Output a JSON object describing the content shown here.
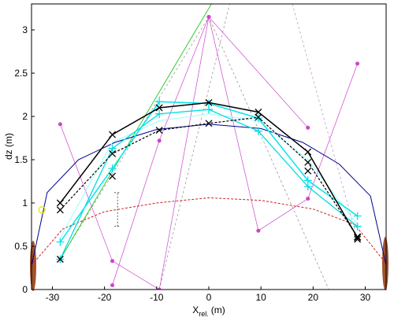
{
  "chart_data": {
    "type": "line",
    "xlabel": {
      "main": "X",
      "sub": "rel.",
      "unit": "(m)"
    },
    "ylabel": "dz (m)",
    "xlim": [
      -34,
      34
    ],
    "ylim": [
      0,
      3.3
    ],
    "xticks": [
      -30,
      -20,
      -10,
      0,
      10,
      20,
      30
    ],
    "yticks": [
      0,
      0.5,
      1,
      1.5,
      2,
      2.5,
      3
    ],
    "series": [
      {
        "color": "#999999",
        "dash": "3,3",
        "width": 0.8,
        "marker": "none",
        "x": [
          -28.5,
          0,
          23
        ],
        "values": [
          0.35,
          3.15,
          0
        ]
      },
      {
        "color": "#999999",
        "dash": "3,3",
        "width": 0.8,
        "marker": "none",
        "x": [
          -9.5,
          4
        ],
        "values": [
          0,
          3.3
        ]
      },
      {
        "color": "#cc99cc",
        "dash": "3,3",
        "width": 0.8,
        "marker": "none",
        "x": [
          16,
          28.5
        ],
        "values": [
          3.3,
          0.58
        ]
      },
      {
        "color": "#33cc33",
        "dash": "",
        "width": 1,
        "marker": "none",
        "x": [
          -28.5,
          0.5
        ],
        "values": [
          0.35,
          3.3
        ]
      },
      {
        "color": "#cc44cc",
        "dash": "",
        "width": 0.7,
        "marker": "dot",
        "x": [
          -28.5,
          -18.5,
          -9.5,
          0,
          9.5,
          19,
          28.5
        ],
        "values": [
          1.91,
          0.33,
          0.0,
          3.15,
          0.68,
          1.05,
          2.61
        ]
      },
      {
        "color": "#cc44cc",
        "dash": "",
        "width": 0.7,
        "marker": "dot",
        "x": [
          -18.5,
          -9.5,
          0,
          19
        ],
        "values": [
          0.05,
          1.72,
          3.15,
          1.87
        ]
      },
      {
        "color": "#00008b",
        "dash": "",
        "width": 1,
        "marker": "none",
        "x": [
          -34,
          -31,
          -25,
          -18,
          -10,
          0,
          10,
          18,
          25,
          31,
          34
        ],
        "values": [
          0.27,
          1.12,
          1.5,
          1.7,
          1.85,
          1.91,
          1.86,
          1.7,
          1.45,
          1.08,
          0.28
        ]
      },
      {
        "color": "#cc2222",
        "dash": "3,2",
        "width": 1,
        "marker": "none",
        "x": [
          -34,
          -28,
          -20,
          -10,
          0,
          10,
          20,
          28,
          34
        ],
        "values": [
          0.28,
          0.7,
          0.9,
          1.0,
          1.06,
          1.03,
          0.93,
          0.75,
          0.3
        ]
      },
      {
        "color": "#99ffff",
        "dash": "",
        "width": 1,
        "marker": "none",
        "x": [
          -28.5,
          -18.5,
          -9.5,
          0,
          9.5,
          19,
          28.5
        ],
        "values": [
          0.6,
          1.7,
          1.95,
          2.03,
          1.95,
          1.5,
          0.75
        ]
      },
      {
        "color": "#00dddd",
        "dash": "",
        "width": 1.3,
        "marker": "+",
        "x": [
          -28.5,
          -18.5,
          -9.5,
          0,
          9.5,
          19,
          28.5
        ],
        "values": [
          0.35,
          1.63,
          2.03,
          2.08,
          1.83,
          1.19,
          0.73
        ]
      },
      {
        "color": "#00e5ee",
        "dash": "",
        "width": 1.5,
        "marker": "+",
        "x": [
          -28.5,
          -18.5,
          -9.5,
          0,
          9.5,
          19,
          28.5
        ],
        "values": [
          0.55,
          1.4,
          2.17,
          2.15,
          1.98,
          1.26,
          0.85
        ]
      },
      {
        "color": "#000000",
        "dash": "3,2",
        "width": 1.2,
        "marker": "x",
        "x": [
          -28.5,
          -18.5,
          -9.5,
          0,
          9.5,
          19,
          28.5
        ],
        "values": [
          0.92,
          1.57,
          1.84,
          1.92,
          1.99,
          1.47,
          0.61
        ]
      },
      {
        "color": "#000000",
        "dash": "",
        "width": 1.5,
        "marker": "x",
        "x": [
          -28.5,
          -18.5,
          -9.5,
          0,
          9.5,
          19,
          28.5
        ],
        "values": [
          1.0,
          1.79,
          2.1,
          2.16,
          2.05,
          1.59,
          0.6
        ]
      },
      {
        "color": "#000000",
        "dash": "",
        "width": 0,
        "marker": "x",
        "x": [
          -28.5,
          -18.5,
          19,
          28.5
        ],
        "values": [
          0.35,
          1.31,
          1.37,
          0.58
        ]
      },
      {
        "color": "#e6e600",
        "dash": "",
        "width": 0,
        "marker": "o",
        "x": [
          -32
        ],
        "values": [
          0.92
        ]
      }
    ],
    "errorbar": {
      "x": -17.5,
      "low": 0.73,
      "high": 1.12
    }
  }
}
